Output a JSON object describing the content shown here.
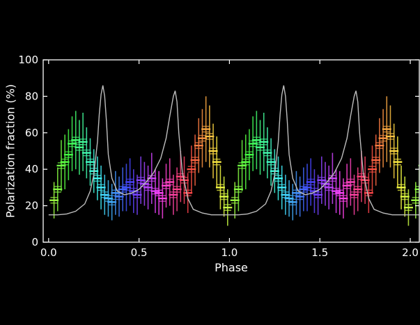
{
  "chart_data": {
    "type": "scatter",
    "title": "",
    "xlabel": "Phase",
    "ylabel": "Polarization fraction (%)",
    "xlim": [
      -0.03,
      2.05
    ],
    "ylim": [
      0,
      100
    ],
    "xticks": [
      0.0,
      0.5,
      1.0,
      1.5,
      2.0
    ],
    "xtick_labels": [
      "0.0",
      "0.5",
      "1.0",
      "1.5",
      "2.0"
    ],
    "yticks": [
      0,
      20,
      40,
      60,
      80,
      100
    ],
    "ytick_labels": [
      "0",
      "20",
      "40",
      "60",
      "80",
      "100"
    ],
    "grid": false,
    "background": "#000000",
    "foreground": "#ffffff",
    "series": [
      {
        "name": "polarization fraction",
        "style": "errorbars, color-coded by phase (hue wheel)",
        "x": [
          0.03,
          0.05,
          0.07,
          0.09,
          0.11,
          0.13,
          0.15,
          0.17,
          0.19,
          0.21,
          0.23,
          0.25,
          0.27,
          0.29,
          0.31,
          0.33,
          0.35,
          0.37,
          0.39,
          0.41,
          0.43,
          0.45,
          0.47,
          0.49,
          0.51,
          0.53,
          0.55,
          0.57,
          0.59,
          0.61,
          0.63,
          0.65,
          0.67,
          0.69,
          0.71,
          0.73,
          0.75,
          0.77,
          0.79,
          0.81,
          0.83,
          0.85,
          0.87,
          0.89,
          0.91,
          0.93,
          0.95,
          0.97,
          0.99
        ],
        "y": [
          23,
          29,
          42,
          44,
          48,
          54,
          56,
          52,
          55,
          49,
          44,
          39,
          35,
          30,
          26,
          24,
          22,
          27,
          25,
          29,
          30,
          33,
          28,
          26,
          34,
          32,
          30,
          35,
          28,
          27,
          24,
          31,
          33,
          26,
          29,
          36,
          34,
          27,
          40,
          45,
          53,
          57,
          62,
          58,
          50,
          44,
          30,
          25,
          19
        ],
        "yerr": [
          10,
          12,
          14,
          15,
          14,
          15,
          16,
          15,
          16,
          14,
          13,
          12,
          12,
          12,
          11,
          10,
          10,
          12,
          11,
          12,
          13,
          13,
          12,
          11,
          13,
          12,
          12,
          14,
          12,
          12,
          11,
          12,
          13,
          11,
          12,
          14,
          13,
          11,
          13,
          14,
          15,
          16,
          18,
          17,
          15,
          14,
          12,
          11,
          10
        ],
        "xerr": 0.025,
        "repeat_period": 1.0
      },
      {
        "name": "light curve (normalized, scaled)",
        "style": "thin gray line",
        "color": "#bdbdbd",
        "x": [
          0.0,
          0.05,
          0.1,
          0.15,
          0.2,
          0.23,
          0.25,
          0.27,
          0.28,
          0.29,
          0.3,
          0.31,
          0.32,
          0.33,
          0.35,
          0.38,
          0.42,
          0.46,
          0.5,
          0.54,
          0.58,
          0.62,
          0.65,
          0.67,
          0.69,
          0.7,
          0.71,
          0.72,
          0.74,
          0.77,
          0.8,
          0.85,
          0.9,
          0.95,
          1.0
        ],
        "y": [
          15,
          15,
          15.5,
          17,
          21,
          28,
          37,
          55,
          70,
          81,
          86,
          80,
          66,
          48,
          35,
          28,
          26,
          27,
          29,
          33,
          38,
          46,
          57,
          69,
          80,
          83,
          77,
          60,
          38,
          24,
          18,
          16,
          15,
          15,
          15
        ],
        "repeat_period": 1.0
      }
    ]
  }
}
